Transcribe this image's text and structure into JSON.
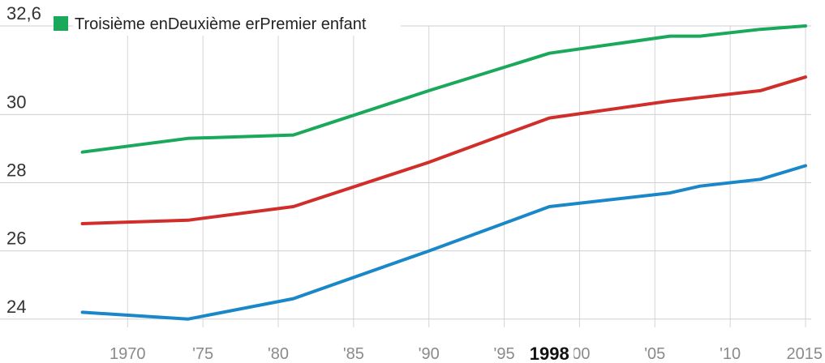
{
  "chart_data": {
    "type": "line",
    "xlim": [
      1966,
      2015
    ],
    "ylim": [
      23.9,
      32.6
    ],
    "y_ticks": [
      {
        "value": 24,
        "label": "24"
      },
      {
        "value": 26,
        "label": "26"
      },
      {
        "value": 28,
        "label": "28"
      },
      {
        "value": 30,
        "label": "30"
      },
      {
        "value": 32.6,
        "label": "32,6"
      }
    ],
    "x_ticks": [
      {
        "value": 1970,
        "label": "1970"
      },
      {
        "value": 1975,
        "label": "'75"
      },
      {
        "value": 1980,
        "label": "'80"
      },
      {
        "value": 1985,
        "label": "'85"
      },
      {
        "value": 1990,
        "label": "'90"
      },
      {
        "value": 1995,
        "label": "'95"
      },
      {
        "value": 2000,
        "label": "'00"
      },
      {
        "value": 2005,
        "label": "'05"
      },
      {
        "value": 2010,
        "label": "'10"
      },
      {
        "value": 2015,
        "label": "2015"
      }
    ],
    "highlight": {
      "value": 1998,
      "label": "1998"
    },
    "legend_text": "Troisième enDeuxième erPremier enfant",
    "grid": true,
    "legend_position": "top-left",
    "series": [
      {
        "color": "#1aa85a",
        "x": [
          1967,
          1974,
          1981,
          1990,
          1998,
          2006,
          2008,
          2012,
          2015
        ],
        "y": [
          28.9,
          29.3,
          29.4,
          30.7,
          31.8,
          32.3,
          32.3,
          32.5,
          32.6
        ]
      },
      {
        "color": "#cf2e2a",
        "x": [
          1967,
          1974,
          1981,
          1990,
          1998,
          2006,
          2008,
          2012,
          2015
        ],
        "y": [
          26.8,
          26.9,
          27.3,
          28.6,
          29.9,
          30.4,
          30.5,
          30.7,
          31.1
        ]
      },
      {
        "color": "#1a87c8",
        "x": [
          1967,
          1974,
          1981,
          1990,
          1998,
          2006,
          2008,
          2012,
          2015
        ],
        "y": [
          24.2,
          24.0,
          24.6,
          26.0,
          27.3,
          27.7,
          27.9,
          28.1,
          28.5
        ]
      }
    ]
  }
}
